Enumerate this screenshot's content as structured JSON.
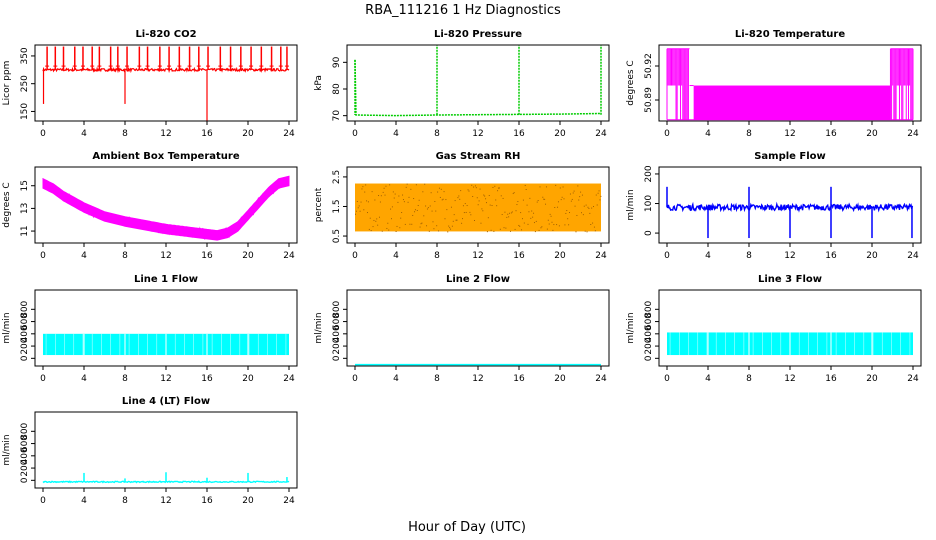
{
  "figure": {
    "title": "RBA_111216  1 Hz Diagnostics",
    "xlabel": "Hour of Day (UTC)"
  },
  "chart_data": [
    {
      "id": "co2",
      "type": "line",
      "title": "Li-820 CO2",
      "ylabel": "Licor ppm",
      "color": "#ff0000",
      "xlim": [
        0,
        24
      ],
      "ylim": [
        130,
        375
      ],
      "xticks": [
        "0",
        "4",
        "8",
        "12",
        "16",
        "20",
        "24"
      ],
      "yticks": [
        "150",
        "250",
        "350"
      ],
      "series": [
        {
          "baseline": 295,
          "noise": 4,
          "spikes_up": [
            0.4,
            1.2,
            2.0,
            3.1,
            3.9,
            4.8,
            5.5,
            6.6,
            7.3,
            8.2,
            9.4,
            10.2,
            11.4,
            12.3,
            13.3,
            14.3,
            15.2,
            16.1,
            17.3,
            18.3,
            19.3,
            20.3,
            21.3,
            22.3,
            23.2,
            23.8
          ],
          "spike_top": 370,
          "spikes_down": [
            0.05,
            8.0,
            16.0
          ],
          "spike_down_values": [
            185,
            185,
            130
          ],
          "end_x": 24.0
        }
      ]
    },
    {
      "id": "pressure",
      "type": "line",
      "title": "Li-820 Pressure",
      "ylabel": "kPa",
      "color": "#00cc00",
      "xlim": [
        0,
        24
      ],
      "ylim": [
        69.5,
        95
      ],
      "xticks": [
        "0",
        "4",
        "8",
        "12",
        "16",
        "20",
        "24"
      ],
      "yticks": [
        "70",
        "80",
        "90"
      ],
      "series": [
        {
          "points": [
            [
              0.0,
              90.0
            ],
            [
              0.1,
              71.5
            ],
            [
              4.0,
              71.3
            ],
            [
              8.0,
              71.5
            ],
            [
              12.0,
              71.6
            ],
            [
              16.0,
              71.7
            ],
            [
              20.0,
              71.8
            ],
            [
              24.0,
              72.0
            ]
          ],
          "spikes_up": [
            8.0,
            16.0,
            24.0
          ],
          "spike_top": 95,
          "dotted": true
        }
      ]
    },
    {
      "id": "licor-temp",
      "type": "line",
      "title": "Li-820 Temperature",
      "ylabel": "degrees C",
      "color": "#ff00ff",
      "xlim": [
        0,
        24
      ],
      "ylim": [
        50.875,
        50.935
      ],
      "xticks": [
        "0",
        "4",
        "8",
        "12",
        "16",
        "20",
        "24"
      ],
      "yticks": [
        "50.89",
        "50.92"
      ],
      "series": [
        {
          "levels": [
            50.876,
            50.903,
            50.932
          ],
          "band_main": [
            50.876,
            50.903
          ],
          "band_start": 2.6,
          "band_end": 21.8,
          "dense_upper_ranges": [
            [
              0.0,
              2.2
            ],
            [
              21.8,
              24.0
            ]
          ]
        }
      ]
    },
    {
      "id": "ambient-temp",
      "type": "line",
      "title": "Ambient Box Temperature",
      "ylabel": "degrees C",
      "color": "#ff00ff",
      "xlim": [
        0,
        24
      ],
      "ylim": [
        10.3,
        16.3
      ],
      "xticks": [
        "0",
        "4",
        "8",
        "12",
        "16",
        "20",
        "24"
      ],
      "yticks": [
        "11",
        "13",
        "15"
      ],
      "series": [
        {
          "points": [
            [
              0.0,
              15.0
            ],
            [
              1.0,
              14.6
            ],
            [
              2.0,
              14.0
            ],
            [
              4.0,
              13.1
            ],
            [
              6.0,
              12.4
            ],
            [
              8.0,
              12.0
            ],
            [
              10.0,
              11.7
            ],
            [
              12.0,
              11.4
            ],
            [
              14.0,
              11.2
            ],
            [
              16.0,
              11.0
            ],
            [
              17.0,
              10.9
            ],
            [
              18.0,
              11.1
            ],
            [
              19.0,
              11.6
            ],
            [
              20.0,
              12.5
            ],
            [
              21.0,
              13.4
            ],
            [
              22.0,
              14.3
            ],
            [
              23.0,
              15.0
            ],
            [
              24.0,
              15.2
            ]
          ],
          "band_width": 0.75
        }
      ]
    },
    {
      "id": "rh",
      "type": "scatter",
      "title": "Gas Stream RH",
      "ylabel": "percent",
      "color": "#ffa500",
      "color2": "#a06000",
      "xlim": [
        0,
        24
      ],
      "ylim": [
        0.4,
        2.7
      ],
      "xticks": [
        "0",
        "4",
        "8",
        "12",
        "16",
        "20",
        "24"
      ],
      "yticks": [
        "0.5",
        "1.5",
        "2.5"
      ],
      "series": [
        {
          "low": 0.75,
          "high": 2.2,
          "end_x": 24.0
        }
      ]
    },
    {
      "id": "sample-flow",
      "type": "line",
      "title": "Sample Flow",
      "ylabel": "ml/min",
      "color": "#0000ff",
      "xlim": [
        0,
        24
      ],
      "ylim": [
        -20,
        210
      ],
      "xticks": [
        "0",
        "4",
        "8",
        "12",
        "16",
        "20",
        "24"
      ],
      "yticks": [
        "0",
        "100",
        "200"
      ],
      "series": [
        {
          "baseline": 88,
          "noise": 9,
          "spikes_down": [
            4.0,
            8.0,
            12.0,
            16.0,
            20.0,
            23.9
          ],
          "spike_down_value": -5,
          "spikes_up": [
            0.0,
            8.0,
            16.0
          ],
          "spike_up_value": 150
        }
      ]
    },
    {
      "id": "line1",
      "type": "line",
      "title": "Line 1 Flow",
      "ylabel": "ml/min",
      "color": "#00ffff",
      "xlim": [
        0,
        24
      ],
      "ylim": [
        -60,
        1050
      ],
      "xticks": [
        "0",
        "4",
        "8",
        "12",
        "16",
        "20",
        "24"
      ],
      "yticks": [
        "0",
        "200",
        "400",
        "600",
        "800"
      ],
      "series": [
        {
          "low": 100,
          "high": 410,
          "gaps": [
            4.0,
            8.0,
            12.0,
            16.0,
            20.0
          ],
          "end_x": 24.0
        }
      ]
    },
    {
      "id": "line2",
      "type": "line",
      "title": "Line 2 Flow",
      "ylabel": "ml/min",
      "color": "#00ffff",
      "xlim": [
        0,
        24
      ],
      "ylim": [
        -60,
        1050
      ],
      "xticks": [
        "0",
        "4",
        "8",
        "12",
        "16",
        "20",
        "24"
      ],
      "yticks": [
        "0",
        "200",
        "400",
        "600",
        "800"
      ],
      "series": [
        {
          "constant": -40
        }
      ]
    },
    {
      "id": "line3",
      "type": "line",
      "title": "Line 3 Flow",
      "ylabel": "ml/min",
      "color": "#00ffff",
      "xlim": [
        0,
        24
      ],
      "ylim": [
        -60,
        1050
      ],
      "xticks": [
        "0",
        "4",
        "8",
        "12",
        "16",
        "20",
        "24"
      ],
      "yticks": [
        "0",
        "200",
        "400",
        "600",
        "800"
      ],
      "series": [
        {
          "low": 100,
          "high": 430,
          "gaps": [
            4.0,
            8.0,
            12.0,
            16.0,
            20.0
          ],
          "end_x": 24.0
        }
      ]
    },
    {
      "id": "line4",
      "type": "line",
      "title": "Line 4 (LT) Flow",
      "ylabel": "ml/min",
      "color": "#00ffff",
      "xlim": [
        0,
        24
      ],
      "ylim": [
        -60,
        1050
      ],
      "xticks": [
        "0",
        "4",
        "8",
        "12",
        "16",
        "20",
        "24"
      ],
      "yticks": [
        "0",
        "200",
        "400",
        "600",
        "800"
      ],
      "series": [
        {
          "baseline": 30,
          "noise": 8,
          "spikes_up": [
            4.0,
            8.0,
            12.0,
            16.0,
            20.0,
            23.8
          ],
          "spike_up_values": [
            160,
            80,
            170,
            90,
            160,
            100
          ]
        }
      ]
    }
  ]
}
